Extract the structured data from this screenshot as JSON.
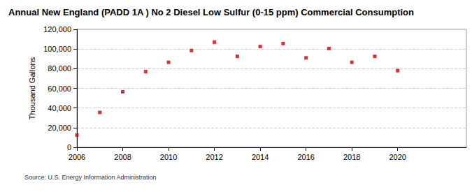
{
  "chart_data": {
    "type": "scatter",
    "title": "Annual New England (PADD 1A ) No 2 Diesel Low Sulfur (0-15 ppm) Commercial Consumption",
    "y_label": "Thousand Gallons",
    "source": "Source: U.S. Energy Information Administration",
    "x": [
      2006,
      2007,
      2008,
      2009,
      2010,
      2011,
      2012,
      2013,
      2014,
      2015,
      2016,
      2017,
      2018,
      2019,
      2020
    ],
    "values": [
      12500,
      35500,
      56500,
      77000,
      86500,
      98500,
      107000,
      92500,
      102500,
      105500,
      91000,
      100500,
      86500,
      92500,
      78000
    ],
    "color": "#cc0000",
    "marker": "square",
    "xlim": [
      2006,
      2023
    ],
    "xticks": [
      2006,
      2008,
      2010,
      2012,
      2014,
      2016,
      2018,
      2020
    ],
    "ylim": [
      0,
      120000
    ],
    "yticks": [
      0,
      {
        "value": 20000,
        "label": "20,000"
      },
      {
        "value": 40000,
        "label": "40,000"
      },
      {
        "value": 60000,
        "label": "60,000"
      },
      {
        "value": 80000,
        "label": "80,000"
      },
      {
        "value": 100000,
        "label": "100,000"
      },
      {
        "value": 120000,
        "label": "120,000"
      }
    ],
    "grid": true
  }
}
